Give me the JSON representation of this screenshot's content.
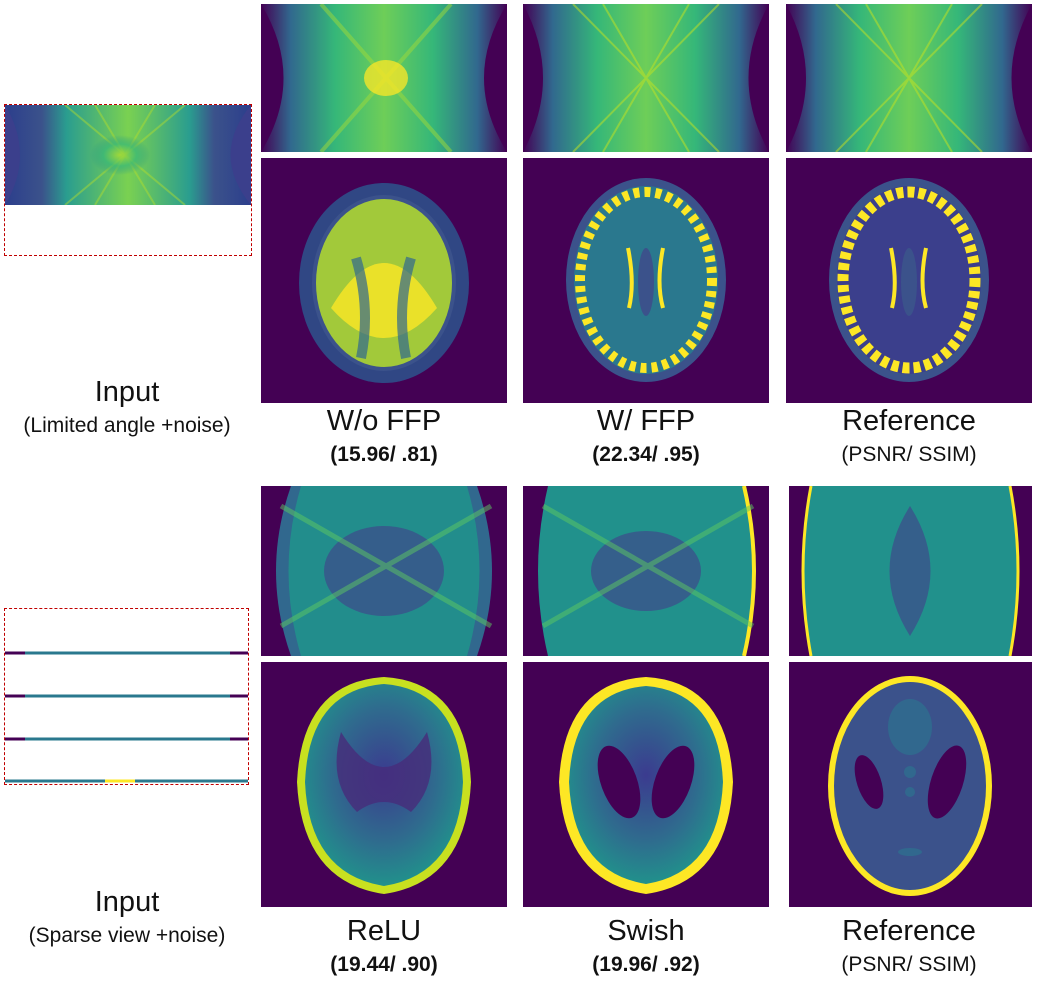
{
  "colors": {
    "dark": "#440154",
    "navy": "#3b528b",
    "teal": "#21918c",
    "green": "#5ec962",
    "yellow": "#fde725",
    "frame_red": "#c00000"
  },
  "top_section": {
    "input": {
      "label": "Input",
      "sub": "(Limited angle +noise)",
      "image_name": "limited-angle-sinogram"
    },
    "columns": [
      {
        "label": "W/o  FFP",
        "metric": "(15.96/ .81)",
        "metric_bold": true
      },
      {
        "label": "W/  FFP",
        "metric": "(22.34/ .95)",
        "metric_bold": true
      },
      {
        "label": "Reference",
        "metric": "(PSNR/ SSIM)",
        "metric_bold": false
      }
    ]
  },
  "bottom_section": {
    "input": {
      "label": "Input",
      "sub": "(Sparse view +noise)",
      "image_name": "sparse-view-sinogram"
    },
    "columns": [
      {
        "label": "ReLU",
        "metric": "(19.44/ .90)",
        "metric_bold": true
      },
      {
        "label": "Swish",
        "metric": "(19.96/ .92)",
        "metric_bold": true
      },
      {
        "label": "Reference",
        "metric": "(PSNR/ SSIM)",
        "metric_bold": false
      }
    ]
  }
}
